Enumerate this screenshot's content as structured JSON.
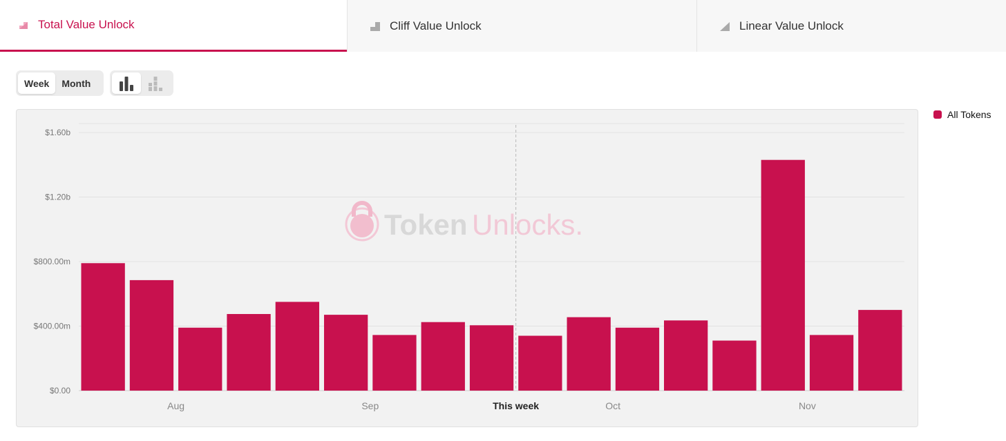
{
  "tabs": [
    {
      "label": "Total Value Unlock",
      "active": true
    },
    {
      "label": "Cliff Value Unlock",
      "active": false
    },
    {
      "label": "Linear Value Unlock",
      "active": false
    }
  ],
  "period_toggle": {
    "week": "Week",
    "month": "Month",
    "selected": "Week"
  },
  "view_toggle": {
    "selected": "bar-chart-icon",
    "options": [
      "bar-chart-icon",
      "stacked-bar-icon"
    ]
  },
  "watermark": {
    "brand_dark": "Token",
    "brand_light": "Unlocks."
  },
  "colors": {
    "accent": "#c8114e",
    "panel": "#f2f2f2",
    "grid": "#e2e2e2"
  },
  "legend": [
    {
      "label": "All Tokens",
      "color": "#c8114e"
    }
  ],
  "chart_data": {
    "type": "bar",
    "series": [
      {
        "name": "All Tokens",
        "values": [
          790,
          685,
          390,
          475,
          550,
          470,
          345,
          425,
          405,
          340,
          455,
          390,
          435,
          310,
          1430,
          345,
          500
        ]
      }
    ],
    "units": "USD millions",
    "ylim": [
      0,
      1600
    ],
    "y_ticks": [
      {
        "value": 0,
        "label": "$0.00"
      },
      {
        "value": 400,
        "label": "$400.00m"
      },
      {
        "value": 800,
        "label": "$800.00m"
      },
      {
        "value": 1200,
        "label": "$1.20b"
      },
      {
        "value": 1600,
        "label": "$1.60b"
      }
    ],
    "x_labels": [
      {
        "index": 1.5,
        "label": "Aug",
        "bold": false
      },
      {
        "index": 5.5,
        "label": "Sep",
        "bold": false
      },
      {
        "index": 8.5,
        "label": "This week",
        "bold": true
      },
      {
        "index": 10.5,
        "label": "Oct",
        "bold": false
      },
      {
        "index": 14.5,
        "label": "Nov",
        "bold": false
      }
    ],
    "current_week_index": 8.5,
    "grid": true,
    "legend_position": "right"
  }
}
